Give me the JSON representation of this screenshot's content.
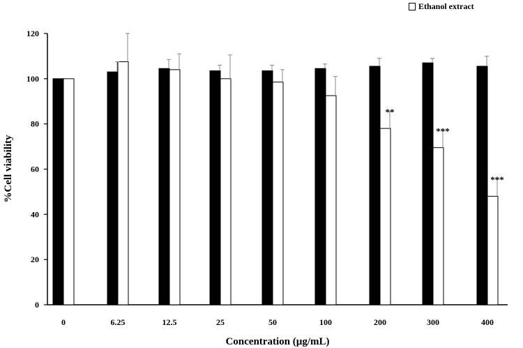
{
  "chart_data": {
    "type": "bar",
    "xlabel": "Concentration (µg/mL)",
    "ylabel": "%Cell viability",
    "ylim": [
      0,
      120
    ],
    "yticks": [
      0,
      20,
      40,
      60,
      80,
      100,
      120
    ],
    "categories": [
      "0",
      "6.25",
      "12.5",
      "25",
      "50",
      "100",
      "200",
      "300",
      "400"
    ],
    "series": [
      {
        "name": "",
        "color": "#000000",
        "values": [
          100,
          103,
          104.5,
          103.5,
          103.5,
          104.5,
          105.5,
          107,
          105.5
        ],
        "errors": [
          0,
          4.5,
          4,
          2.5,
          2.5,
          2,
          3.5,
          2,
          4.5
        ]
      },
      {
        "name": "Ethanol extract",
        "color": "#ffffff",
        "values": [
          100,
          107.5,
          104,
          100,
          98.5,
          92.5,
          78,
          69.5,
          48
        ],
        "errors": [
          0,
          12.5,
          7,
          10.5,
          5.5,
          8.5,
          7.5,
          7.5,
          7.5
        ]
      }
    ],
    "annotations": [
      {
        "category": "200",
        "series": "Ethanol extract",
        "text": "**"
      },
      {
        "category": "300",
        "series": "Ethanol extract",
        "text": "***"
      },
      {
        "category": "400",
        "series": "Ethanol extract",
        "text": "***"
      }
    ],
    "legend": "top-right",
    "grid": false
  }
}
